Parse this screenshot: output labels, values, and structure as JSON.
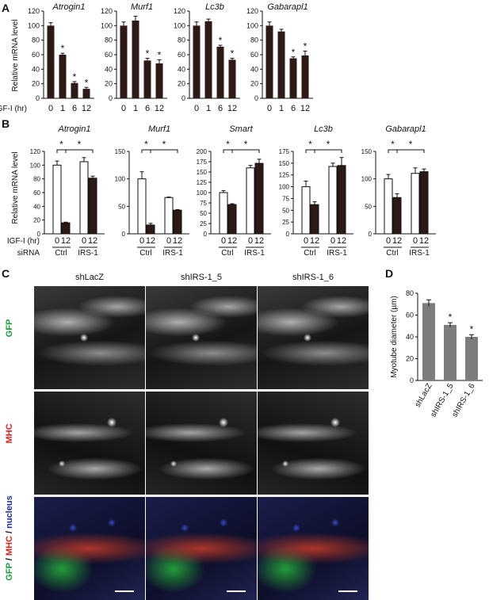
{
  "panel_labels": {
    "A": "A",
    "B": "B",
    "C": "C",
    "D": "D"
  },
  "chart_data": [
    {
      "panel": "A",
      "type": "bar",
      "title": "Atrogin1",
      "categories": [
        "0",
        "1",
        "6",
        "12"
      ],
      "values": [
        100,
        60,
        21,
        13
      ],
      "errors": [
        4,
        2,
        2,
        2
      ],
      "significant": [
        false,
        true,
        true,
        true
      ],
      "ylabel": "Relative mRNA level",
      "xlabel": "IGF-I (hr)",
      "ylim": [
        0,
        120
      ],
      "yticks": [
        0,
        20,
        40,
        60,
        80,
        100,
        120
      ],
      "bar_color": "#2d1a16"
    },
    {
      "panel": "A",
      "type": "bar",
      "title": "Murf1",
      "categories": [
        "0",
        "1",
        "6",
        "12"
      ],
      "values": [
        100,
        107,
        52,
        48
      ],
      "errors": [
        5,
        6,
        3,
        5
      ],
      "significant": [
        false,
        false,
        true,
        true
      ],
      "ylim": [
        0,
        120
      ],
      "yticks": [
        0,
        20,
        40,
        60,
        80,
        100,
        120
      ],
      "bar_color": "#2d1a16"
    },
    {
      "panel": "A",
      "type": "bar",
      "title": "Lc3b",
      "categories": [
        "0",
        "1",
        "6",
        "12"
      ],
      "values": [
        100,
        106,
        71,
        53
      ],
      "errors": [
        5,
        3,
        2,
        2
      ],
      "significant": [
        false,
        false,
        true,
        true
      ],
      "ylim": [
        0,
        120
      ],
      "yticks": [
        0,
        20,
        40,
        60,
        80,
        100,
        120
      ],
      "bar_color": "#2d1a16"
    },
    {
      "panel": "A",
      "type": "bar",
      "title": "Gabarapl1",
      "categories": [
        "0",
        "1",
        "6",
        "12"
      ],
      "values": [
        100,
        92,
        55,
        59
      ],
      "errors": [
        5,
        3,
        2,
        6
      ],
      "significant": [
        false,
        false,
        true,
        true
      ],
      "ylim": [
        0,
        120
      ],
      "yticks": [
        0,
        20,
        40,
        60,
        80,
        100,
        120
      ],
      "bar_color": "#2d1a16"
    },
    {
      "panel": "B",
      "type": "bar",
      "title": "Atrogin1",
      "categories": [
        "0",
        "12",
        "0",
        "12"
      ],
      "groups": [
        "Ctrl",
        "IRS-1"
      ],
      "values": [
        100,
        16,
        105,
        81
      ],
      "errors": [
        6,
        1,
        6,
        3
      ],
      "fills": [
        "open",
        "solid",
        "open",
        "solid"
      ],
      "ylabel": "Relative mRNA level",
      "xlabel": "IGF-I (hr)",
      "row2label": "siRNA",
      "ylim": [
        0,
        120
      ],
      "yticks": [
        0,
        20,
        40,
        60,
        80,
        100,
        120
      ],
      "brackets": [
        {
          "from": 0,
          "to": 1,
          "label": "*"
        },
        {
          "from": 1,
          "to": 3,
          "label": "*"
        }
      ]
    },
    {
      "panel": "B",
      "type": "bar",
      "title": "Murf1",
      "categories": [
        "0",
        "12",
        "0",
        "12"
      ],
      "groups": [
        "Ctrl",
        "IRS-1"
      ],
      "values": [
        100,
        16,
        66,
        43
      ],
      "errors": [
        13,
        3,
        1,
        1
      ],
      "fills": [
        "open",
        "solid",
        "open",
        "solid"
      ],
      "ylim": [
        0,
        150
      ],
      "yticks": [
        0,
        50,
        100,
        150
      ],
      "brackets": [
        {
          "from": 0,
          "to": 1,
          "label": "*"
        },
        {
          "from": 1,
          "to": 3,
          "label": "*"
        }
      ]
    },
    {
      "panel": "B",
      "type": "bar",
      "title": "Smart",
      "categories": [
        "0",
        "12",
        "0",
        "12"
      ],
      "groups": [
        "Ctrl",
        "IRS-1"
      ],
      "values": [
        100,
        71,
        160,
        171
      ],
      "errors": [
        5,
        2,
        6,
        10
      ],
      "fills": [
        "open",
        "solid",
        "open",
        "solid"
      ],
      "ylim": [
        0,
        200
      ],
      "yticks": [
        0,
        25,
        50,
        75,
        100,
        125,
        150,
        175,
        200
      ],
      "brackets": [
        {
          "from": 0,
          "to": 1,
          "label": "*"
        },
        {
          "from": 1,
          "to": 3,
          "label": "*"
        }
      ]
    },
    {
      "panel": "B",
      "type": "bar",
      "title": "Lc3b",
      "categories": [
        "0",
        "12",
        "0",
        "12"
      ],
      "groups": [
        "Ctrl",
        "IRS-1"
      ],
      "values": [
        100,
        62,
        143,
        145
      ],
      "errors": [
        12,
        6,
        7,
        17
      ],
      "fills": [
        "open",
        "solid",
        "open",
        "solid"
      ],
      "ylim": [
        0,
        175
      ],
      "yticks": [
        0,
        25,
        50,
        75,
        100,
        125,
        150,
        175
      ],
      "brackets": [
        {
          "from": 0,
          "to": 1,
          "label": "*"
        },
        {
          "from": 1,
          "to": 3,
          "label": "*"
        }
      ]
    },
    {
      "panel": "B",
      "type": "bar",
      "title": "Gabarapl1",
      "categories": [
        "0",
        "12",
        "0",
        "12"
      ],
      "groups": [
        "Ctrl",
        "IRS-1"
      ],
      "values": [
        100,
        66,
        110,
        113
      ],
      "errors": [
        8,
        7,
        10,
        5
      ],
      "fills": [
        "open",
        "solid",
        "open",
        "solid"
      ],
      "ylim": [
        0,
        150
      ],
      "yticks": [
        0,
        50,
        100,
        150
      ],
      "brackets": [
        {
          "from": 0,
          "to": 1,
          "label": "*"
        },
        {
          "from": 1,
          "to": 3,
          "label": "*"
        }
      ]
    },
    {
      "panel": "D",
      "type": "bar",
      "categories": [
        "shLacZ",
        "shIRS-1_5",
        "shIRS-1_6"
      ],
      "values": [
        71,
        51,
        40
      ],
      "errors": [
        3,
        2,
        2
      ],
      "significant": [
        false,
        true,
        true
      ],
      "ylabel": "Myotube diameter (µm)",
      "ylim": [
        0,
        80
      ],
      "yticks": [
        0,
        20,
        40,
        60,
        80
      ],
      "bar_color": "#7d7d7d"
    }
  ],
  "micrographs": {
    "columns": [
      "shLacZ",
      "shIRS-1_5",
      "shIRS-1_6"
    ],
    "rows": [
      {
        "label": "GFP",
        "label_color": "#1f9a3a"
      },
      {
        "label": "MHC",
        "label_color": "#d22424"
      },
      {
        "parts": [
          {
            "text": "GFP",
            "color": "#1f9a3a"
          },
          {
            "text": " / ",
            "color": "#111111"
          },
          {
            "text": "MHC",
            "color": "#d22424"
          },
          {
            "text": " / ",
            "color": "#111111"
          },
          {
            "text": "nucleus",
            "color": "#1d2f9a"
          }
        ]
      }
    ]
  },
  "asterisk": "*"
}
